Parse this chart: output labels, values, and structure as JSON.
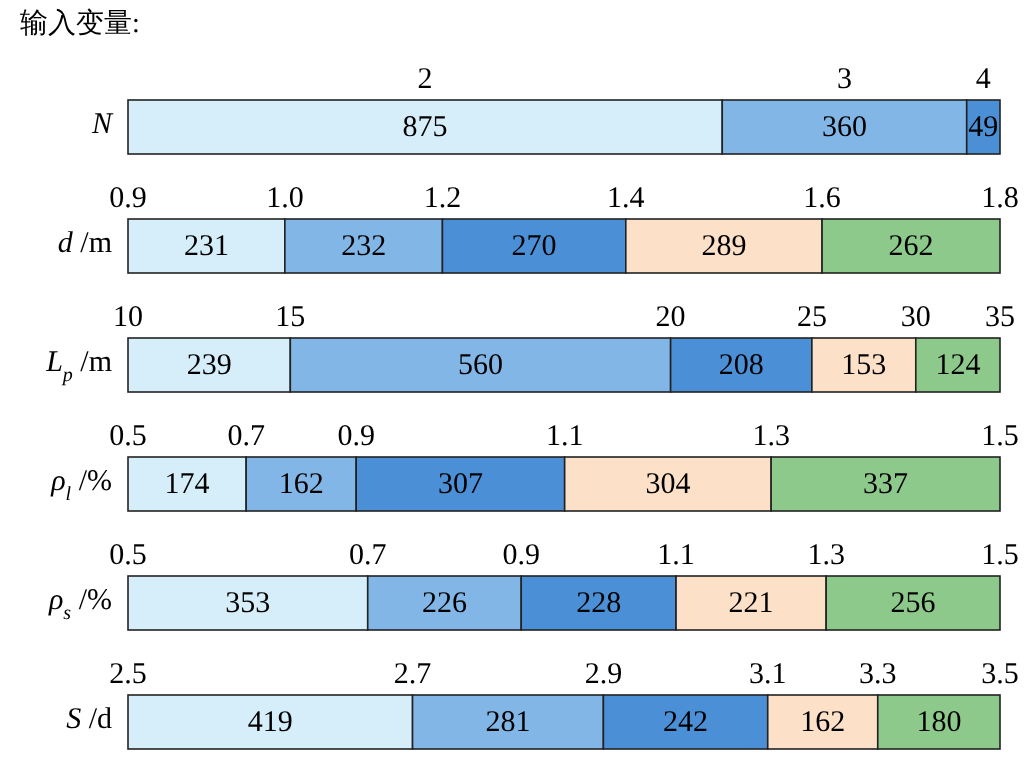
{
  "chart_data": [
    {
      "type": "bar",
      "title": "输入变量:",
      "orientation": "horizontal",
      "stacked": true,
      "data_labels": true,
      "tick_labels": "y",
      "categories": [
        "N"
      ],
      "xlim": [
        0,
        1284
      ],
      "series": [
        {
          "name": "2",
          "color": "#d6eef9",
          "values": [
            875
          ]
        },
        {
          "name": "3",
          "color": "#82b6e6",
          "values": [
            360
          ]
        },
        {
          "name": "4",
          "color": "#4b8fd6",
          "values": [
            49
          ]
        }
      ]
    },
    {
      "type": "bar",
      "orientation": "horizontal",
      "stacked": true,
      "data_labels": true,
      "tick_labels": "y",
      "categories": [
        "d /m"
      ],
      "xlim": [
        0,
        1284
      ],
      "annotations": [
        {
          "text": "0.9",
          "x": 0,
          "y": "d /m"
        },
        {
          "text": "1.0",
          "x": 231,
          "y": "d /m"
        },
        {
          "text": "1.2",
          "x": 463,
          "y": "d /m"
        },
        {
          "text": "1.4",
          "x": 733,
          "y": "d /m"
        },
        {
          "text": "1.6",
          "x": 1022,
          "y": "d /m"
        },
        {
          "text": "1.8",
          "x": 1284,
          "y": "d /m"
        }
      ],
      "series": [
        {
          "color": "#d6eef9",
          "values": [
            231
          ]
        },
        {
          "color": "#82b6e6",
          "values": [
            232
          ]
        },
        {
          "color": "#4b8fd6",
          "values": [
            270
          ]
        },
        {
          "color": "#fce0c8",
          "values": [
            289
          ]
        },
        {
          "color": "#8cc98a",
          "values": [
            262
          ]
        }
      ]
    },
    {
      "type": "bar",
      "orientation": "horizontal",
      "stacked": true,
      "data_labels": true,
      "tick_labels": "y",
      "categories": [
        "L$_{p}$ /m"
      ],
      "xlim": [
        0,
        1284
      ],
      "annotations": [
        {
          "text": "10",
          "x": 0,
          "y": "L$_{p}$ /m"
        },
        {
          "text": "15",
          "x": 239,
          "y": "L$_{p}$ /m"
        },
        {
          "text": "20",
          "x": 799,
          "y": "L$_{p}$ /m"
        },
        {
          "text": "25",
          "x": 1007,
          "y": "L$_{p}$ /m"
        },
        {
          "text": "30",
          "x": 1160,
          "y": "L$_{p}$ /m"
        },
        {
          "text": "35",
          "x": 1284,
          "y": "L$_{p}$ /m"
        }
      ],
      "series": [
        {
          "color": "#d6eef9",
          "values": [
            239
          ]
        },
        {
          "color": "#82b6e6",
          "values": [
            560
          ]
        },
        {
          "color": "#4b8fd6",
          "values": [
            208
          ]
        },
        {
          "color": "#fce0c8",
          "values": [
            153
          ]
        },
        {
          "color": "#8cc98a",
          "values": [
            124
          ]
        }
      ]
    },
    {
      "type": "bar",
      "orientation": "horizontal",
      "stacked": true,
      "data_labels": true,
      "tick_labels": "y",
      "categories": [
        "ρ$_{l}$ /%"
      ],
      "xlim": [
        0,
        1284
      ],
      "annotations": [
        {
          "text": "0.5",
          "x": 0,
          "y": "ρ$_{l}$ /%"
        },
        {
          "text": "0.7",
          "x": 174,
          "y": "ρ$_{l}$ /%"
        },
        {
          "text": "0.9",
          "x": 336,
          "y": "ρ$_{l}$ /%"
        },
        {
          "text": "1.1",
          "x": 643,
          "y": "ρ$_{l}$ /%"
        },
        {
          "text": "1.3",
          "x": 947,
          "y": "ρ$_{l}$ /%"
        },
        {
          "text": "1.5",
          "x": 1284,
          "y": "ρ$_{l}$ /%"
        }
      ],
      "series": [
        {
          "color": "#d6eef9",
          "values": [
            174
          ]
        },
        {
          "color": "#82b6e6",
          "values": [
            162
          ]
        },
        {
          "color": "#4b8fd6",
          "values": [
            307
          ]
        },
        {
          "color": "#fce0c8",
          "values": [
            304
          ]
        },
        {
          "color": "#8cc98a",
          "values": [
            337
          ]
        }
      ]
    },
    {
      "type": "bar",
      "orientation": "horizontal",
      "stacked": true,
      "data_labels": true,
      "tick_labels": "y",
      "categories": [
        "ρ$_{s}$ /%"
      ],
      "xlim": [
        0,
        1284
      ],
      "annotations": [
        {
          "text": "0.5",
          "x": 0,
          "y": "ρ$_{s}$ /%"
        },
        {
          "text": "0.7",
          "x": 353,
          "y": "ρ$_{s}$ /%"
        },
        {
          "text": "0.9",
          "x": 579,
          "y": "ρ$_{s}$ /%"
        },
        {
          "text": "1.1",
          "x": 807,
          "y": "ρ$_{s}$ /%"
        },
        {
          "text": "1.3",
          "x": 1028,
          "y": "ρ$_{s}$ /%"
        },
        {
          "text": "1.5",
          "x": 1284,
          "y": "ρ$_{s}$ /%"
        }
      ],
      "series": [
        {
          "color": "#d6eef9",
          "values": [
            353
          ]
        },
        {
          "color": "#82b6e6",
          "values": [
            226
          ]
        },
        {
          "color": "#4b8fd6",
          "values": [
            228
          ]
        },
        {
          "color": "#fce0c8",
          "values": [
            221
          ]
        },
        {
          "color": "#8cc98a",
          "values": [
            256
          ]
        }
      ]
    },
    {
      "type": "bar",
      "orientation": "horizontal",
      "stacked": true,
      "data_labels": true,
      "tick_labels": "y",
      "categories": [
        "S /d"
      ],
      "xlim": [
        0,
        1284
      ],
      "annotations": [
        {
          "text": "2.5",
          "x": 0,
          "y": "S /d"
        },
        {
          "text": "2.7",
          "x": 419,
          "y": "S /d"
        },
        {
          "text": "2.9",
          "x": 700,
          "y": "S /d"
        },
        {
          "text": "3.1",
          "x": 942,
          "y": "S /d"
        },
        {
          "text": "3.3",
          "x": 1104,
          "y": "S /d"
        },
        {
          "text": "3.5",
          "x": 1284,
          "y": "S /d"
        }
      ],
      "series": [
        {
          "color": "#d6eef9",
          "values": [
            419
          ]
        },
        {
          "color": "#82b6e6",
          "values": [
            281
          ]
        },
        {
          "color": "#4b8fd6",
          "values": [
            242
          ]
        },
        {
          "color": "#fce0c8",
          "values": [
            162
          ]
        },
        {
          "color": "#8cc98a",
          "values": [
            180
          ]
        }
      ]
    }
  ]
}
